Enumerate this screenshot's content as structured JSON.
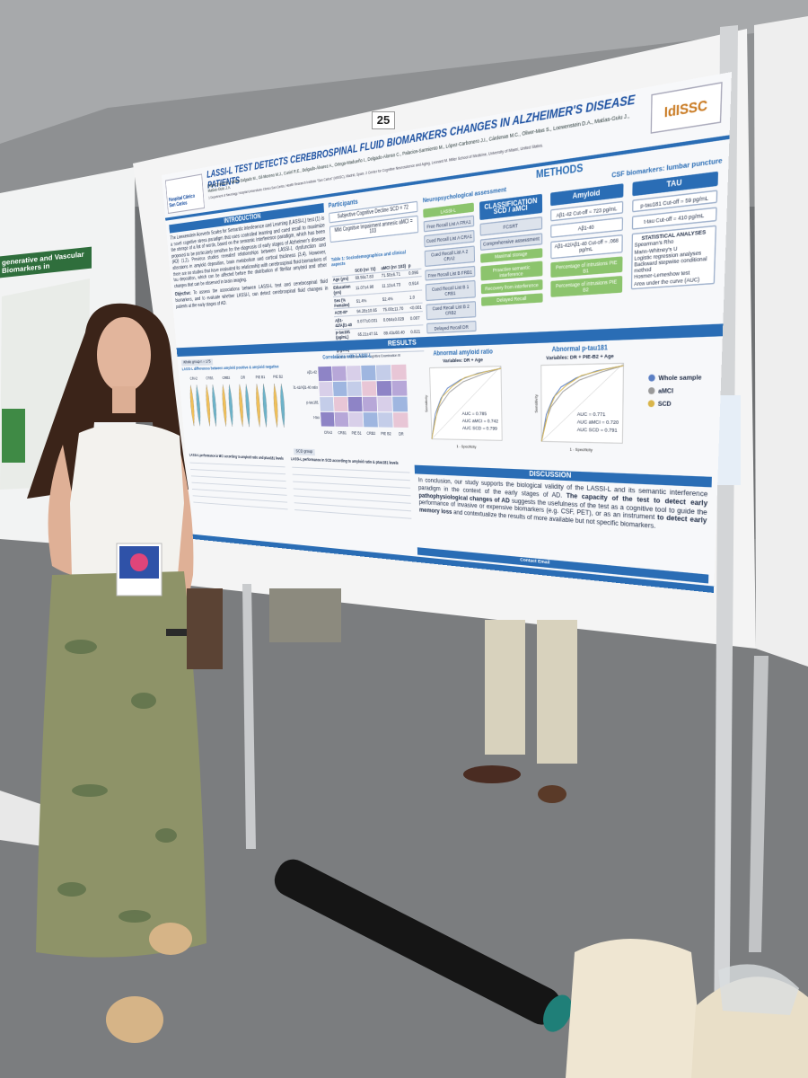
{
  "board_number": "25",
  "left_poster": {
    "title": "generative and Vascular Biomarkers in"
  },
  "poster": {
    "institution": "Hospital Clínico San Carlos",
    "logo": "IdISSC",
    "title": "LASSI-L TEST DETECTS CEREBROSPINAL FLUID BIOMARKERS CHANGES IN ALZHEIMER'S DISEASE PATIENTS",
    "authors": "Díaz-Cirarda M., Valles-Salgado M., Gil-Moreno M.J., Curiel R.E., Delgado-Álvarez A., Ortega-Madueño I., Delgado-Alonso C., Palacios-Sarmiento M., López-Carbonero J.I., Cárdenas M.C., Oliver-Mas S., Loewenstein D.A., Matías-Guiu J., Matías-Guiu J.A.",
    "affiliations": "1 Department of Neurology, Hospital Universitario Clínico San Carlos, Health Research Institute \"San Carlos\" (IdISSC), Madrid, Spain. 2 Center for Cognitive Neuroscience and Aging, Leonard M. Miller School of Medicine, University of Miami, United States.",
    "introduction": {
      "heading": "INTRODUCTION",
      "text": "The Loewenstein Acevedo Scales for Semantic Interference and Learning (LASSI-L) test (1) is a novel cognitive stress paradigm that uses controlled learning and cued recall to maximize the storage of a list of words, based on the semantic interference paradigm, which has been proposed to be particularly sensitive for the diagnosis of early stages of Alzheimer's disease (AD) (1,2). Previous studies revealed relationships between LASSI-L dysfunction and alterations in amyloid deposition, brain metabolism and cortical thickness (3,4). However, there are no studies that have evaluated its relationship with cerebrospinal fluid biomarkers of tau deposition, which can be affected before the distribution of fibrillar amyloid and other changes that can be observed in brain imaging.",
      "objective_label": "Objective:",
      "objective": "To assess the associations between LASSI-L test and cerebrospinal fluid biomarkers, and to evaluate whether LASSI-L can detect cerebrospinal fluid changes in patients at the early stages of AD."
    },
    "participants": {
      "label": "Participants",
      "groups": [
        "Subjective Cognitive Decline SCD = 72",
        "Mild Cognitive Impairment amnesic aMCI = 103"
      ]
    },
    "table1": {
      "title": "Table 1: Sociodemographics and clinical aspects",
      "header": [
        "SCD (n= 72)",
        "aMCI (n= 103)",
        "p"
      ],
      "rows": [
        [
          "Age (yrs)",
          "69.56±7.83",
          "71.50±6.71",
          "0.096"
        ],
        [
          "Education (yrs)",
          "11.07±4.98",
          "11.12±4.73",
          "0.914"
        ],
        [
          "Sex (% Females)",
          "51.4%",
          "52.4%",
          "1.0"
        ],
        [
          "ACE-III*",
          "94.28±10.65",
          "75.00±11.70",
          "<0.001"
        ],
        [
          "Aβ1-42/Aβ1-40",
          "0.077±0.031",
          "0.064±0.029",
          "0.007"
        ],
        [
          "p-tau181 (pg/mL)",
          "65.21±47.51",
          "89.43±68.40",
          "0.021"
        ],
        [
          "t-tau (pg/mL)",
          "416.53±270.06",
          "551.85±383.56",
          "0.011"
        ]
      ],
      "note": "*ACE-III = Addenbrooke's Cognitive Examination III"
    },
    "methods": {
      "heading": "METHODS",
      "neuro_heading": "Neuropsychological assessment",
      "csf_heading": "CSF biomarkers: lumbar puncture",
      "lassi": {
        "label": "LASSI-L",
        "items": [
          "Free Recall List A FRA1",
          "Cued Recall List A CRA1",
          "Cued Recall List A 2 CRA2",
          "Free Recall List B FRB1",
          "Cued Recall List B 1 CRB1",
          "Cued Recall List B 2 CRB2",
          "Delayed Recall DR"
        ]
      },
      "classification": {
        "label": "CLASSIFICATION SCD / aMCI",
        "items": [
          "FCSRT",
          "Comprehensive assessment",
          "Maximal storage",
          "Proactive semantic interference",
          "Recovery from interference",
          "Delayed Recall"
        ]
      },
      "amyloid": {
        "label": "Amyloid",
        "items": [
          "Aβ1-42 Cut-off = 723 pg/mL",
          "Aβ1-40",
          "Aβ1-42/Aβ1-40 Cut-off = .068 pg/mL",
          "Percentage of intrusions PIE B1",
          "Percentage of intrusions PIE B2"
        ]
      },
      "tau": {
        "label": "TAU",
        "items": [
          "p-tau181 Cut-off = 59 pg/mL",
          "t-tau Cut-off = 410 pg/mL"
        ]
      },
      "stats": {
        "label": "STATISTICAL ANALYSES",
        "items": [
          "Spearman's Rho",
          "Mann-Whitney's U",
          "Logistic regression analyses",
          "Backward stepwise conditional method",
          "Hosmer-Lemeshow test",
          "Area under the curve (AUC)"
        ]
      }
    },
    "results": {
      "heading": "RESULTS",
      "whole_group": "Whole group n = 175",
      "violin_title": "LASSI-L differences between amyloid positive & amyloid negative",
      "violin_labels": [
        "CRA2",
        "CRB1",
        "CRB2",
        "DR",
        "PIE B1",
        "PIE B2"
      ],
      "correlations": {
        "title": "Correlations with LASSI-L",
        "rows": [
          "Aβ1-42",
          "Aβ1-42/Aβ1-40 ratio",
          "p-tau181",
          "t-tau"
        ],
        "columns": [
          "CRA2",
          "CRB1",
          "PIE B1",
          "CRB2",
          "PIE B2",
          "DR"
        ]
      },
      "scd_group": "SCD group",
      "mci_table_title": "LASSI-L performance in MCI according to amyloid ratio and ptau181 levels",
      "scd_table_title": "LASSI-L performance in SCD according to amyloid ratio & ptau181 levels",
      "roc": [
        {
          "title": "Abnormal amyloid ratio",
          "subtitle": "Variables: DR + Age",
          "auc": [
            "AUC = 0.785",
            "AUC aMCI = 0.742",
            "AUC SCD = 0.799"
          ]
        },
        {
          "title": "Abnormal p-tau181",
          "subtitle": "Variables: DR + PIE-B2 + Age",
          "auc": [
            "AUC = 0.771",
            "AUC aMCI = 0.720",
            "AUC SCD = 0.791"
          ]
        }
      ],
      "roc_x_label": "1 - Specificity",
      "roc_y_label": "Sensitivity",
      "legend": [
        {
          "name": "Whole sample",
          "color": "#5b7fc4"
        },
        {
          "name": "aMCI",
          "color": "#9a9a9a"
        },
        {
          "name": "SCD",
          "color": "#d9b54a"
        }
      ]
    },
    "discussion": {
      "heading": "DISCUSSION",
      "segments": [
        {
          "text": "In conclusion, our study supports the biological validity of the LASSI-L and its semantic interference paradigm in the context of the early stages of AD. ",
          "bold": false
        },
        {
          "text": "The capacity of the test to detect early pathophysiological changes of AD",
          "bold": true
        },
        {
          "text": " suggests the usefulness of the test as a cognitive tool to guide the performance of invasive or expensive biomarkers (e.g. CSF, PET), or as an instrument ",
          "bold": false
        },
        {
          "text": "to detect early memory loss",
          "bold": true
        },
        {
          "text": " and contextualize the results of more available but not specific biomarkers.",
          "bold": false
        }
      ]
    },
    "contact": "Contact Email"
  }
}
